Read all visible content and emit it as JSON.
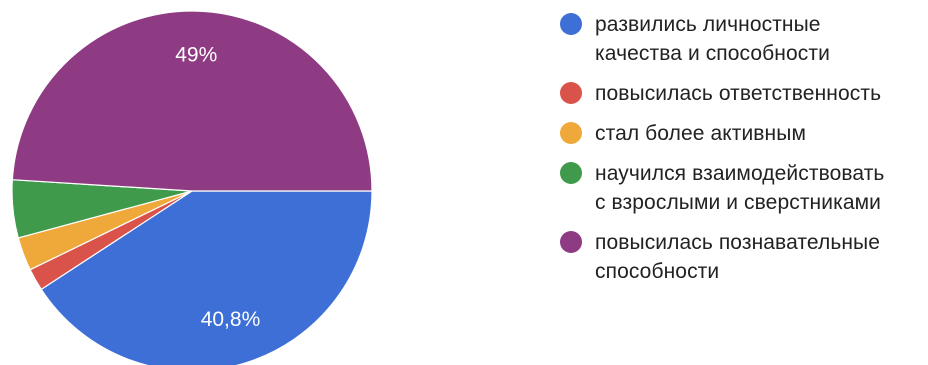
{
  "chart_data": {
    "type": "pie",
    "categories": [
      "развились личностные качества и способности",
      "повысилась ответственность",
      "стал более активным",
      "научился взаимодействовать с взрослыми и сверстниками",
      "повысилась познавательные способности"
    ],
    "values": [
      40.8,
      2.0,
      3.0,
      5.2,
      49.0
    ],
    "value_unit": "%",
    "data_labels": [
      "40,8%",
      "",
      "",
      "",
      "49%"
    ],
    "colors": [
      "#3d6fd6",
      "#d9534a",
      "#efa83a",
      "#3f9a4c",
      "#8e3b84"
    ],
    "legend_position": "right",
    "title": ""
  },
  "legend": {
    "items": [
      {
        "label_lines": [
          "развились личностные",
          "качества и способности"
        ],
        "color": "#3d6fd6"
      },
      {
        "label_lines": [
          "повысилась ответственность"
        ],
        "color": "#d9534a"
      },
      {
        "label_lines": [
          "стал более активным"
        ],
        "color": "#efa83a"
      },
      {
        "label_lines": [
          "научился взаимодействовать",
          "с взрослыми и сверстниками"
        ],
        "color": "#3f9a4c"
      },
      {
        "label_lines": [
          "повысилась познавательные",
          "способности"
        ],
        "color": "#8e3b84"
      }
    ]
  }
}
